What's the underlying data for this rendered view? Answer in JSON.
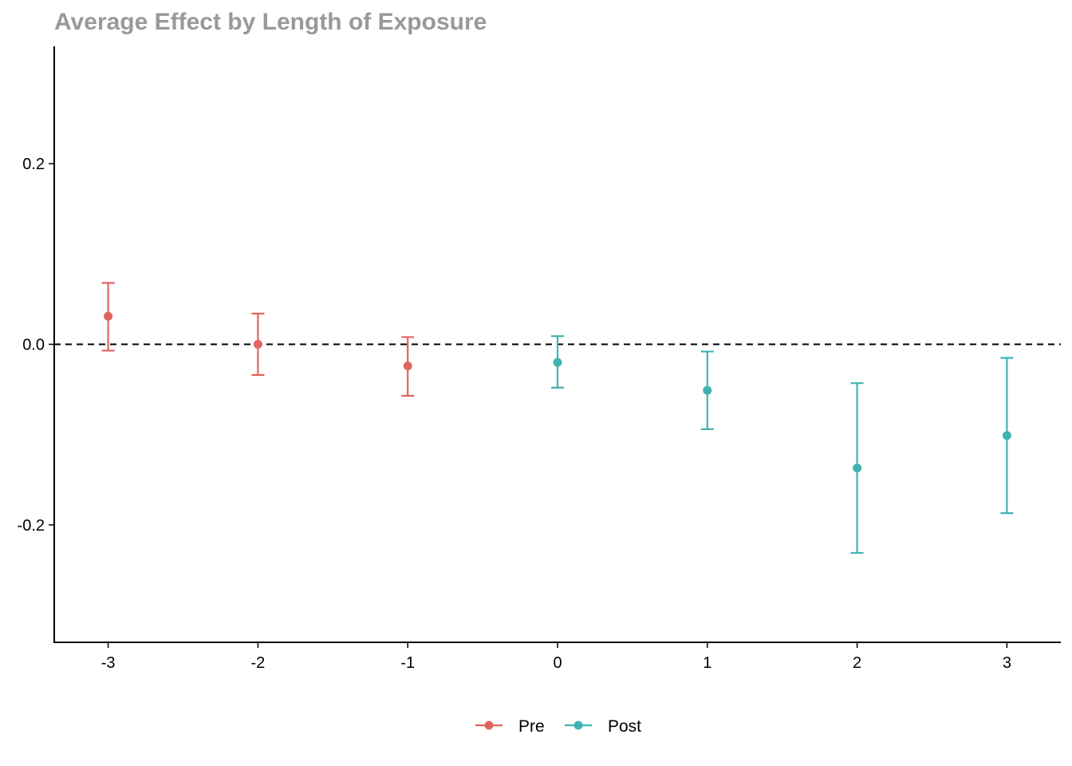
{
  "chart_data": {
    "type": "scatter",
    "title": "Average Effect by Length of Exposure",
    "xlabel": "",
    "ylabel": "",
    "x_ticks": [
      "-3",
      "-2",
      "-1",
      "0",
      "1",
      "2",
      "3"
    ],
    "y_ticks": [
      "-0.2",
      "0.0",
      "0.2"
    ],
    "xlim": [
      -3.36,
      3.36
    ],
    "ylim": [
      -0.33,
      0.33
    ],
    "reference_line": {
      "y": 0,
      "style": "dashed"
    },
    "grid": false,
    "legend_position": "bottom",
    "series": [
      {
        "name": "Pre",
        "color": "#E0655E",
        "points": [
          {
            "x": -3,
            "y": 0.031,
            "lower": -0.007,
            "upper": 0.068
          },
          {
            "x": -2,
            "y": 0.0,
            "lower": -0.034,
            "upper": 0.034
          },
          {
            "x": -1,
            "y": -0.024,
            "lower": -0.057,
            "upper": 0.008
          }
        ]
      },
      {
        "name": "Post",
        "color": "#3FB3B3",
        "points": [
          {
            "x": 0,
            "y": -0.02,
            "lower": -0.048,
            "upper": 0.009
          },
          {
            "x": 1,
            "y": -0.051,
            "lower": -0.094,
            "upper": -0.008
          },
          {
            "x": 2,
            "y": -0.137,
            "lower": -0.231,
            "upper": -0.043
          },
          {
            "x": 3,
            "y": -0.101,
            "lower": -0.187,
            "upper": -0.015
          }
        ]
      }
    ]
  }
}
